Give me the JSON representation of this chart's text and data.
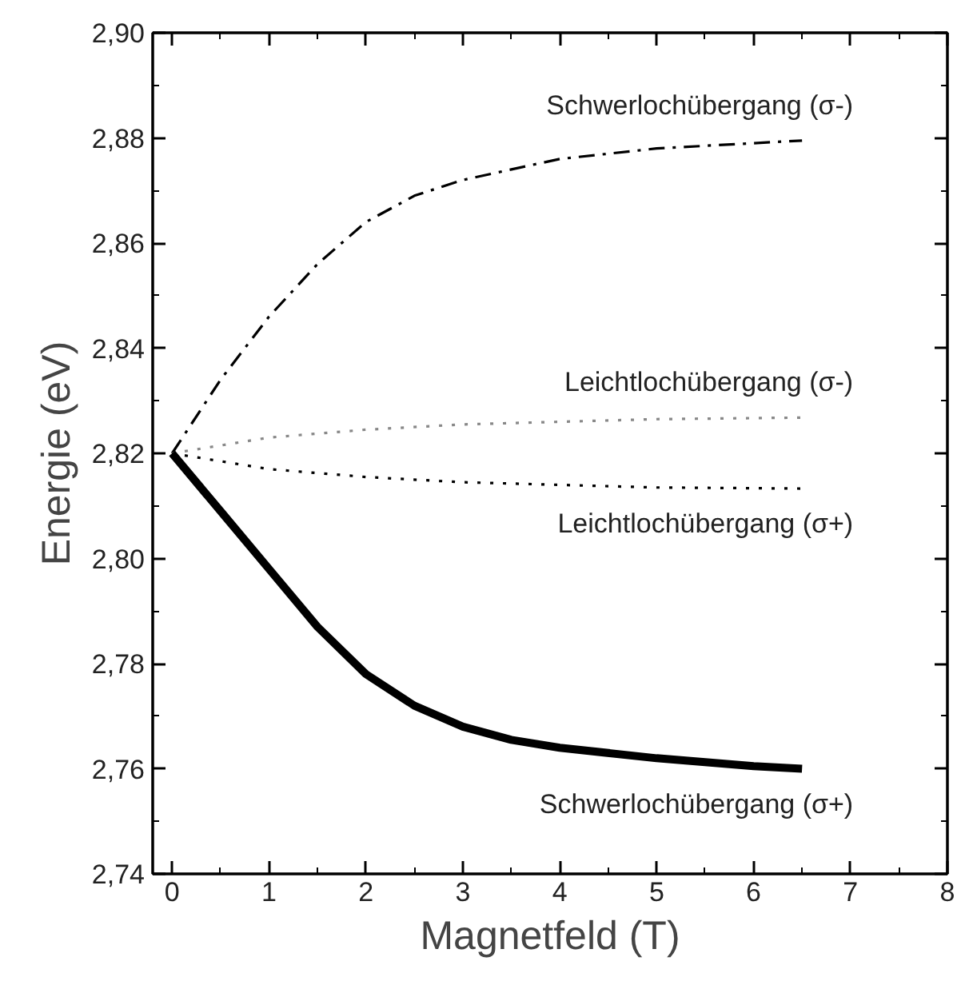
{
  "chart_data": {
    "type": "line",
    "xlabel": "Magnetfeld (T)",
    "ylabel": "Energie (eV)",
    "xlim": [
      -0.2,
      8
    ],
    "ylim": [
      2.74,
      2.9
    ],
    "xticks": [
      0,
      1,
      2,
      3,
      4,
      5,
      6,
      7,
      8
    ],
    "yticks": [
      {
        "value": 2.74,
        "label": "2,74"
      },
      {
        "value": 2.76,
        "label": "2,76"
      },
      {
        "value": 2.78,
        "label": "2,78"
      },
      {
        "value": 2.8,
        "label": "2,80"
      },
      {
        "value": 2.82,
        "label": "2,82"
      },
      {
        "value": 2.84,
        "label": "2,84"
      },
      {
        "value": 2.86,
        "label": "2,86"
      },
      {
        "value": 2.88,
        "label": "2,88"
      },
      {
        "value": 2.9,
        "label": "2,90"
      }
    ],
    "grid": false,
    "marker": "none",
    "series": [
      {
        "name": "Schwerlochübergang (σ-)",
        "color": "#000000",
        "line_style": "dashdot",
        "x": [
          0,
          0.5,
          1,
          1.5,
          2,
          2.5,
          3,
          4,
          5,
          6,
          6.5
        ],
        "values": [
          2.82,
          2.834,
          2.846,
          2.856,
          2.864,
          2.869,
          2.872,
          2.876,
          2.878,
          2.879,
          2.8795
        ]
      },
      {
        "name": "Leichtlochübergang (σ-)",
        "color": "#888888",
        "line_style": "dotted",
        "x": [
          0,
          1,
          2,
          3,
          4,
          5,
          6.5
        ],
        "values": [
          2.82,
          2.823,
          2.8245,
          2.8255,
          2.826,
          2.8265,
          2.8268
        ]
      },
      {
        "name": "Leichtlochübergang (σ+)",
        "color": "#000000",
        "line_style": "dotted",
        "x": [
          0,
          1,
          2,
          3,
          4,
          5,
          6.5
        ],
        "values": [
          2.82,
          2.817,
          2.8155,
          2.8145,
          2.814,
          2.8135,
          2.8133
        ]
      },
      {
        "name": "Schwerlochübergang (σ+)",
        "color": "#000000",
        "line_style": "solid",
        "x": [
          0,
          0.5,
          1,
          1.5,
          2,
          2.5,
          3,
          3.5,
          4,
          5,
          6,
          6.5
        ],
        "values": [
          2.82,
          2.809,
          2.798,
          2.787,
          2.778,
          2.772,
          2.768,
          2.7655,
          2.764,
          2.762,
          2.7605,
          2.76
        ]
      }
    ]
  }
}
